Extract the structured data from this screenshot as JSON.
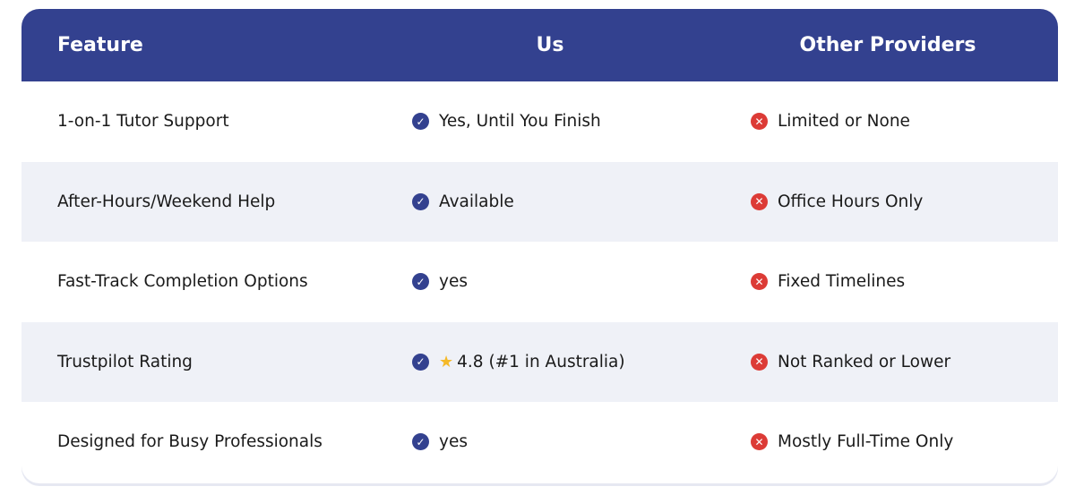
{
  "header": {
    "feature": "Feature",
    "us": "Us",
    "others": "Other Providers"
  },
  "colors": {
    "header": "#33418f",
    "check": "#33418f",
    "cross": "#dc3b36",
    "alt_row": "#eff1f7"
  },
  "rows": [
    {
      "feature": "1-on-1 Tutor Support",
      "us": "Yes, Until You Finish",
      "others": "Limited or None"
    },
    {
      "feature": "After-Hours/Weekend Help",
      "us": "Available",
      "others": "Office Hours Only"
    },
    {
      "feature": "Fast-Track Completion Options",
      "us": "yes",
      "others": "Fixed Timelines"
    },
    {
      "feature": "Trustpilot Rating",
      "us": "4.8 (#1 in Australia)",
      "us_icon": "star-icon",
      "others": "Not Ranked or Lower"
    },
    {
      "feature": "Designed for Busy Professionals",
      "us": "yes",
      "others": "Mostly Full-Time Only"
    }
  ]
}
